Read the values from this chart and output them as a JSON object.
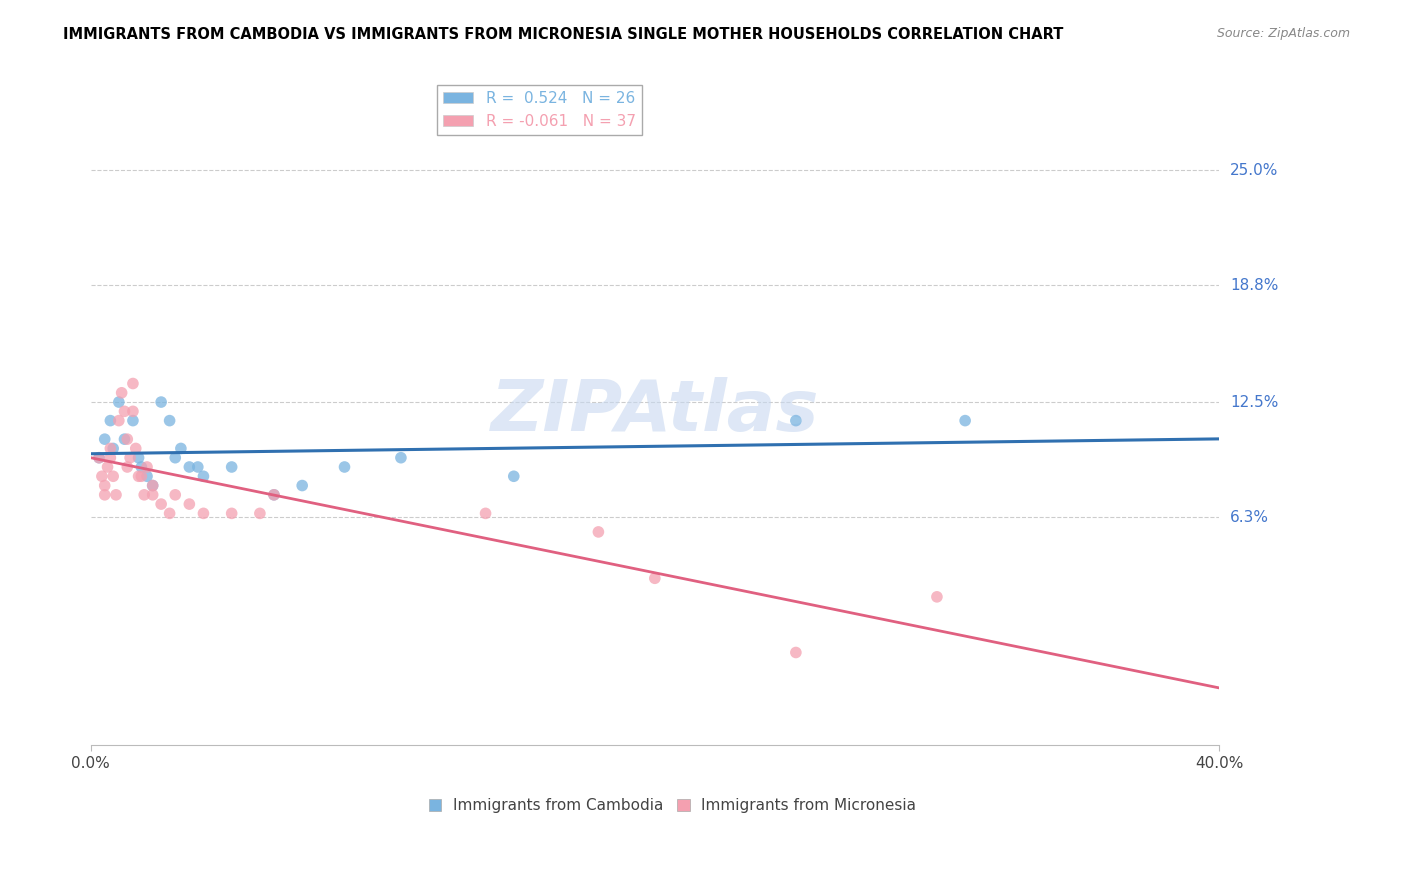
{
  "title": "IMMIGRANTS FROM CAMBODIA VS IMMIGRANTS FROM MICRONESIA SINGLE MOTHER HOUSEHOLDS CORRELATION CHART",
  "source": "Source: ZipAtlas.com",
  "ylabel": "Single Mother Households",
  "xlim": [
    0.0,
    0.4
  ],
  "ylim": [
    -0.06,
    0.3
  ],
  "y_tick_values": [
    0.25,
    0.188,
    0.125,
    0.063
  ],
  "y_tick_labels": [
    "25.0%",
    "18.8%",
    "12.5%",
    "6.3%"
  ],
  "x_tick_values": [
    0.0,
    0.4
  ],
  "x_tick_labels": [
    "0.0%",
    "40.0%"
  ],
  "legend_entries": [
    {
      "label": "R =  0.524   N = 26",
      "color": "#7ab4e0"
    },
    {
      "label": "R = -0.061   N = 37",
      "color": "#f4a0b0"
    }
  ],
  "cambodia_color": "#7ab4e0",
  "micronesia_color": "#f4a0b0",
  "trend_cambodia_color": "#3070b0",
  "trend_micronesia_color": "#e06080",
  "watermark_text": "ZIPAtlas",
  "watermark_color": "#c8d8f0",
  "bottom_legend": [
    {
      "label": "Immigrants from Cambodia",
      "color": "#7ab4e0"
    },
    {
      "label": "Immigrants from Micronesia",
      "color": "#f4a0b0"
    }
  ],
  "cambodia_points": [
    [
      0.003,
      0.095
    ],
    [
      0.005,
      0.105
    ],
    [
      0.007,
      0.115
    ],
    [
      0.008,
      0.1
    ],
    [
      0.01,
      0.125
    ],
    [
      0.012,
      0.105
    ],
    [
      0.015,
      0.115
    ],
    [
      0.017,
      0.095
    ],
    [
      0.018,
      0.09
    ],
    [
      0.02,
      0.085
    ],
    [
      0.022,
      0.08
    ],
    [
      0.025,
      0.125
    ],
    [
      0.028,
      0.115
    ],
    [
      0.03,
      0.095
    ],
    [
      0.032,
      0.1
    ],
    [
      0.035,
      0.09
    ],
    [
      0.038,
      0.09
    ],
    [
      0.04,
      0.085
    ],
    [
      0.05,
      0.09
    ],
    [
      0.065,
      0.075
    ],
    [
      0.075,
      0.08
    ],
    [
      0.09,
      0.09
    ],
    [
      0.11,
      0.095
    ],
    [
      0.15,
      0.085
    ],
    [
      0.25,
      0.115
    ],
    [
      0.31,
      0.115
    ]
  ],
  "micronesia_points": [
    [
      0.003,
      0.095
    ],
    [
      0.004,
      0.085
    ],
    [
      0.005,
      0.08
    ],
    [
      0.005,
      0.075
    ],
    [
      0.006,
      0.09
    ],
    [
      0.007,
      0.1
    ],
    [
      0.007,
      0.095
    ],
    [
      0.008,
      0.085
    ],
    [
      0.009,
      0.075
    ],
    [
      0.01,
      0.115
    ],
    [
      0.011,
      0.13
    ],
    [
      0.012,
      0.12
    ],
    [
      0.013,
      0.09
    ],
    [
      0.013,
      0.105
    ],
    [
      0.014,
      0.095
    ],
    [
      0.015,
      0.135
    ],
    [
      0.015,
      0.12
    ],
    [
      0.016,
      0.1
    ],
    [
      0.017,
      0.085
    ],
    [
      0.018,
      0.085
    ],
    [
      0.019,
      0.075
    ],
    [
      0.02,
      0.09
    ],
    [
      0.022,
      0.08
    ],
    [
      0.022,
      0.075
    ],
    [
      0.025,
      0.07
    ],
    [
      0.028,
      0.065
    ],
    [
      0.03,
      0.075
    ],
    [
      0.035,
      0.07
    ],
    [
      0.04,
      0.065
    ],
    [
      0.05,
      0.065
    ],
    [
      0.06,
      0.065
    ],
    [
      0.065,
      0.075
    ],
    [
      0.14,
      0.065
    ],
    [
      0.18,
      0.055
    ],
    [
      0.2,
      0.03
    ],
    [
      0.25,
      -0.01
    ],
    [
      0.3,
      0.02
    ]
  ]
}
